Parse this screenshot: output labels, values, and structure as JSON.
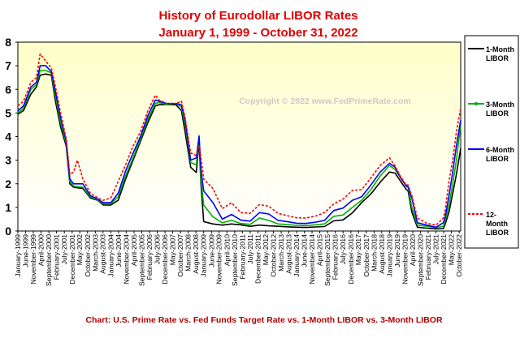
{
  "chart_data": {
    "type": "line",
    "title": "History of Eurodollar LIBOR Rates",
    "subtitle": "January 1, 1999  -  October 31, 2022",
    "copyright": "Copyright © 2022 www.FedPrimeRate.com",
    "caption": "Chart: U.S. Prime Rate vs. Fed Funds Target Rate vs. 1-Month LIBOR vs. 3-Month LIBOR",
    "ylim": [
      0,
      8
    ],
    "yticks": [
      "0",
      "1",
      "2",
      "3",
      "4",
      "5",
      "6",
      "7",
      "8"
    ],
    "xlim": [
      1999.0,
      2022.83
    ],
    "xticks": [
      {
        "t": 1999.0,
        "label": "January-1999"
      },
      {
        "t": 1999.42,
        "label": "June-1999"
      },
      {
        "t": 1999.83,
        "label": "November-1999"
      },
      {
        "t": 2000.25,
        "label": "April-2000"
      },
      {
        "t": 2000.67,
        "label": "September-2000"
      },
      {
        "t": 2001.08,
        "label": "February-2001"
      },
      {
        "t": 2001.5,
        "label": "July-2001"
      },
      {
        "t": 2001.92,
        "label": "December-2001"
      },
      {
        "t": 2002.33,
        "label": "May-2002"
      },
      {
        "t": 2002.75,
        "label": "October-2002"
      },
      {
        "t": 2003.17,
        "label": "March-2003"
      },
      {
        "t": 2003.58,
        "label": "August-2003"
      },
      {
        "t": 2004.0,
        "label": "January-2004"
      },
      {
        "t": 2004.42,
        "label": "June-2004"
      },
      {
        "t": 2004.83,
        "label": "November-2004"
      },
      {
        "t": 2005.25,
        "label": "April-2005"
      },
      {
        "t": 2005.67,
        "label": "September-2005"
      },
      {
        "t": 2006.08,
        "label": "February-2006"
      },
      {
        "t": 2006.5,
        "label": "July-2006"
      },
      {
        "t": 2006.92,
        "label": "December-2006"
      },
      {
        "t": 2007.33,
        "label": "May-2007"
      },
      {
        "t": 2007.75,
        "label": "October-2007"
      },
      {
        "t": 2008.17,
        "label": "March-2008"
      },
      {
        "t": 2008.58,
        "label": "August-2008"
      },
      {
        "t": 2009.0,
        "label": "January-2009"
      },
      {
        "t": 2009.42,
        "label": "June-2009"
      },
      {
        "t": 2009.83,
        "label": "November-2009"
      },
      {
        "t": 2010.25,
        "label": "April-2010"
      },
      {
        "t": 2010.67,
        "label": "September-2010"
      },
      {
        "t": 2011.08,
        "label": "February-2011"
      },
      {
        "t": 2011.5,
        "label": "July-2011"
      },
      {
        "t": 2011.92,
        "label": "December-2011"
      },
      {
        "t": 2012.33,
        "label": "May-2012"
      },
      {
        "t": 2012.75,
        "label": "October-2012"
      },
      {
        "t": 2013.17,
        "label": "March-2013"
      },
      {
        "t": 2013.58,
        "label": "August-2013"
      },
      {
        "t": 2014.0,
        "label": "January-2014"
      },
      {
        "t": 2014.42,
        "label": "June-2014"
      },
      {
        "t": 2014.83,
        "label": "November-2014"
      },
      {
        "t": 2015.25,
        "label": "April-2015"
      },
      {
        "t": 2015.67,
        "label": "September-2015"
      },
      {
        "t": 2016.08,
        "label": "February-2016"
      },
      {
        "t": 2016.5,
        "label": "July-2016"
      },
      {
        "t": 2016.92,
        "label": "December-2016"
      },
      {
        "t": 2017.33,
        "label": "May-2017"
      },
      {
        "t": 2017.75,
        "label": "October-2017"
      },
      {
        "t": 2018.17,
        "label": "March-2018"
      },
      {
        "t": 2018.58,
        "label": "August-2018"
      },
      {
        "t": 2019.0,
        "label": "January-2019"
      },
      {
        "t": 2019.42,
        "label": "June-2019"
      },
      {
        "t": 2019.83,
        "label": "November-2019"
      },
      {
        "t": 2020.25,
        "label": "April-2020"
      },
      {
        "t": 2020.67,
        "label": "September-2020"
      },
      {
        "t": 2021.08,
        "label": "February-2021"
      },
      {
        "t": 2021.5,
        "label": "July-2021"
      },
      {
        "t": 2021.92,
        "label": "December-2021"
      },
      {
        "t": 2022.33,
        "label": "May-2022"
      },
      {
        "t": 2022.75,
        "label": "October-2022"
      }
    ],
    "grid": false,
    "legend_position": "right",
    "series": [
      {
        "name": "1-Month LIBOR",
        "legend_lines": [
          "1-Month",
          "LIBOR"
        ],
        "color": "#000000",
        "dash": "",
        "marker": "none",
        "x": [
          1999.0,
          1999.3,
          1999.7,
          2000.0,
          2000.2,
          2000.5,
          2000.8,
          2001.0,
          2001.3,
          2001.6,
          2001.8,
          2002.0,
          2002.5,
          2002.9,
          2003.3,
          2003.6,
          2004.0,
          2004.4,
          2004.8,
          2005.2,
          2005.6,
          2006.0,
          2006.4,
          2006.6,
          2007.0,
          2007.5,
          2007.8,
          2008.0,
          2008.3,
          2008.6,
          2008.75,
          2008.85,
          2009.0,
          2009.5,
          2010.0,
          2010.5,
          2011.0,
          2011.5,
          2012.0,
          2012.5,
          2013.0,
          2013.5,
          2014.0,
          2014.5,
          2015.0,
          2015.5,
          2016.0,
          2016.5,
          2017.0,
          2017.5,
          2018.0,
          2018.5,
          2019.0,
          2019.3,
          2019.6,
          2019.9,
          2020.0,
          2020.2,
          2020.5,
          2021.0,
          2021.5,
          2021.9,
          2022.0,
          2022.2,
          2022.4,
          2022.6,
          2022.83
        ],
        "y": [
          4.95,
          5.1,
          5.8,
          6.1,
          6.6,
          6.65,
          6.6,
          5.6,
          4.4,
          3.6,
          2.0,
          1.85,
          1.8,
          1.4,
          1.3,
          1.1,
          1.1,
          1.3,
          2.2,
          3.0,
          3.8,
          4.6,
          5.3,
          5.35,
          5.35,
          5.35,
          5.1,
          4.2,
          2.7,
          2.48,
          3.8,
          2.0,
          0.4,
          0.3,
          0.25,
          0.3,
          0.26,
          0.2,
          0.25,
          0.22,
          0.2,
          0.18,
          0.16,
          0.15,
          0.17,
          0.19,
          0.43,
          0.47,
          0.77,
          1.2,
          1.57,
          2.07,
          2.5,
          2.45,
          2.1,
          1.76,
          1.7,
          0.8,
          0.16,
          0.12,
          0.09,
          0.1,
          0.3,
          0.8,
          1.6,
          2.4,
          3.5
        ]
      },
      {
        "name": "3-Month LIBOR",
        "legend_lines": [
          "3-Month",
          "LIBOR"
        ],
        "color": "#00b000",
        "dash": "",
        "marker": "dot",
        "x": [
          1999.0,
          1999.3,
          1999.7,
          2000.0,
          2000.2,
          2000.5,
          2000.8,
          2001.0,
          2001.3,
          2001.6,
          2001.8,
          2002.0,
          2002.5,
          2002.9,
          2003.3,
          2003.6,
          2004.0,
          2004.4,
          2004.8,
          2005.2,
          2005.6,
          2006.0,
          2006.4,
          2006.6,
          2007.0,
          2007.5,
          2007.8,
          2008.0,
          2008.3,
          2008.6,
          2008.75,
          2008.85,
          2009.0,
          2009.5,
          2010.0,
          2010.5,
          2011.0,
          2011.5,
          2012.0,
          2012.5,
          2013.0,
          2013.5,
          2014.0,
          2014.5,
          2015.0,
          2015.5,
          2016.0,
          2016.5,
          2017.0,
          2017.5,
          2018.0,
          2018.5,
          2019.0,
          2019.3,
          2019.6,
          2019.9,
          2020.0,
          2020.2,
          2020.5,
          2021.0,
          2021.5,
          2021.9,
          2022.0,
          2022.2,
          2022.4,
          2022.6,
          2022.83
        ],
        "y": [
          5.0,
          5.2,
          6.0,
          6.2,
          6.8,
          6.8,
          6.7,
          5.8,
          4.6,
          3.7,
          2.1,
          1.9,
          1.85,
          1.45,
          1.32,
          1.15,
          1.15,
          1.45,
          2.35,
          3.1,
          3.9,
          4.75,
          5.4,
          5.45,
          5.35,
          5.4,
          5.25,
          4.5,
          2.9,
          2.8,
          4.05,
          2.2,
          1.1,
          0.6,
          0.35,
          0.45,
          0.32,
          0.28,
          0.55,
          0.45,
          0.3,
          0.27,
          0.24,
          0.23,
          0.26,
          0.3,
          0.62,
          0.68,
          1.0,
          1.3,
          1.75,
          2.33,
          2.78,
          2.6,
          2.25,
          1.92,
          1.9,
          1.0,
          0.25,
          0.2,
          0.14,
          0.2,
          0.45,
          1.1,
          2.0,
          3.0,
          4.5
        ]
      },
      {
        "name": "6-Month LIBOR",
        "legend_lines": [
          "6-Month",
          "LIBOR"
        ],
        "color": "#0000ff",
        "dash": "",
        "marker": "none",
        "x": [
          1999.0,
          1999.3,
          1999.7,
          2000.0,
          2000.2,
          2000.5,
          2000.8,
          2001.0,
          2001.3,
          2001.6,
          2001.8,
          2002.0,
          2002.5,
          2002.9,
          2003.3,
          2003.6,
          2004.0,
          2004.4,
          2004.8,
          2005.2,
          2005.6,
          2006.0,
          2006.4,
          2006.6,
          2007.0,
          2007.5,
          2007.8,
          2008.0,
          2008.3,
          2008.6,
          2008.75,
          2008.85,
          2009.0,
          2009.5,
          2010.0,
          2010.5,
          2011.0,
          2011.5,
          2012.0,
          2012.5,
          2013.0,
          2013.5,
          2014.0,
          2014.5,
          2015.0,
          2015.5,
          2016.0,
          2016.5,
          2017.0,
          2017.5,
          2018.0,
          2018.5,
          2019.0,
          2019.3,
          2019.6,
          2019.9,
          2020.0,
          2020.2,
          2020.5,
          2021.0,
          2021.5,
          2021.9,
          2022.0,
          2022.2,
          2022.4,
          2022.6,
          2022.83
        ],
        "y": [
          5.1,
          5.3,
          6.1,
          6.3,
          7.0,
          7.0,
          6.75,
          6.0,
          4.8,
          3.8,
          2.2,
          2.0,
          2.0,
          1.5,
          1.35,
          1.2,
          1.2,
          1.6,
          2.55,
          3.3,
          4.0,
          4.9,
          5.55,
          5.5,
          5.4,
          5.4,
          5.35,
          4.7,
          3.0,
          3.1,
          4.0,
          2.6,
          1.7,
          1.2,
          0.5,
          0.7,
          0.46,
          0.42,
          0.78,
          0.72,
          0.45,
          0.4,
          0.33,
          0.32,
          0.37,
          0.45,
          0.87,
          0.97,
          1.3,
          1.45,
          1.95,
          2.5,
          2.87,
          2.7,
          2.25,
          1.9,
          1.85,
          1.4,
          0.35,
          0.25,
          0.16,
          0.35,
          0.6,
          1.5,
          2.5,
          3.6,
          4.7
        ]
      },
      {
        "name": "12-Month LIBOR",
        "legend_lines": [
          "12-",
          "Month",
          "LIBOR"
        ],
        "color": "#ff0000",
        "dash": "3,2",
        "marker": "none",
        "x": [
          1999.0,
          1999.3,
          1999.7,
          2000.0,
          2000.2,
          2000.5,
          2000.8,
          2001.0,
          2001.3,
          2001.6,
          2001.8,
          2002.0,
          2002.2,
          2002.5,
          2002.9,
          2003.3,
          2003.6,
          2004.0,
          2004.4,
          2004.8,
          2005.2,
          2005.6,
          2006.0,
          2006.4,
          2006.6,
          2007.0,
          2007.5,
          2007.8,
          2008.0,
          2008.3,
          2008.6,
          2008.75,
          2008.85,
          2009.0,
          2009.5,
          2010.0,
          2010.5,
          2011.0,
          2011.5,
          2012.0,
          2012.5,
          2013.0,
          2013.5,
          2014.0,
          2014.5,
          2015.0,
          2015.5,
          2016.0,
          2016.5,
          2017.0,
          2017.5,
          2018.0,
          2018.5,
          2019.0,
          2019.3,
          2019.6,
          2019.9,
          2020.0,
          2020.2,
          2020.5,
          2021.0,
          2021.5,
          2021.9,
          2022.0,
          2022.2,
          2022.4,
          2022.6,
          2022.83
        ],
        "y": [
          5.3,
          5.5,
          6.3,
          6.5,
          7.5,
          7.2,
          6.9,
          6.2,
          5.0,
          3.9,
          2.4,
          2.5,
          3.0,
          2.2,
          1.6,
          1.4,
          1.3,
          1.4,
          2.1,
          2.8,
          3.6,
          4.2,
          5.1,
          5.75,
          5.55,
          5.4,
          5.4,
          5.5,
          4.8,
          3.3,
          3.2,
          3.6,
          3.1,
          2.2,
          1.8,
          0.95,
          1.2,
          0.78,
          0.75,
          1.12,
          1.05,
          0.75,
          0.65,
          0.56,
          0.55,
          0.63,
          0.78,
          1.15,
          1.35,
          1.72,
          1.75,
          2.25,
          2.78,
          3.1,
          2.75,
          2.3,
          1.95,
          1.95,
          1.5,
          0.55,
          0.33,
          0.25,
          0.55,
          0.9,
          2.1,
          3.0,
          4.2,
          5.2
        ]
      }
    ]
  }
}
